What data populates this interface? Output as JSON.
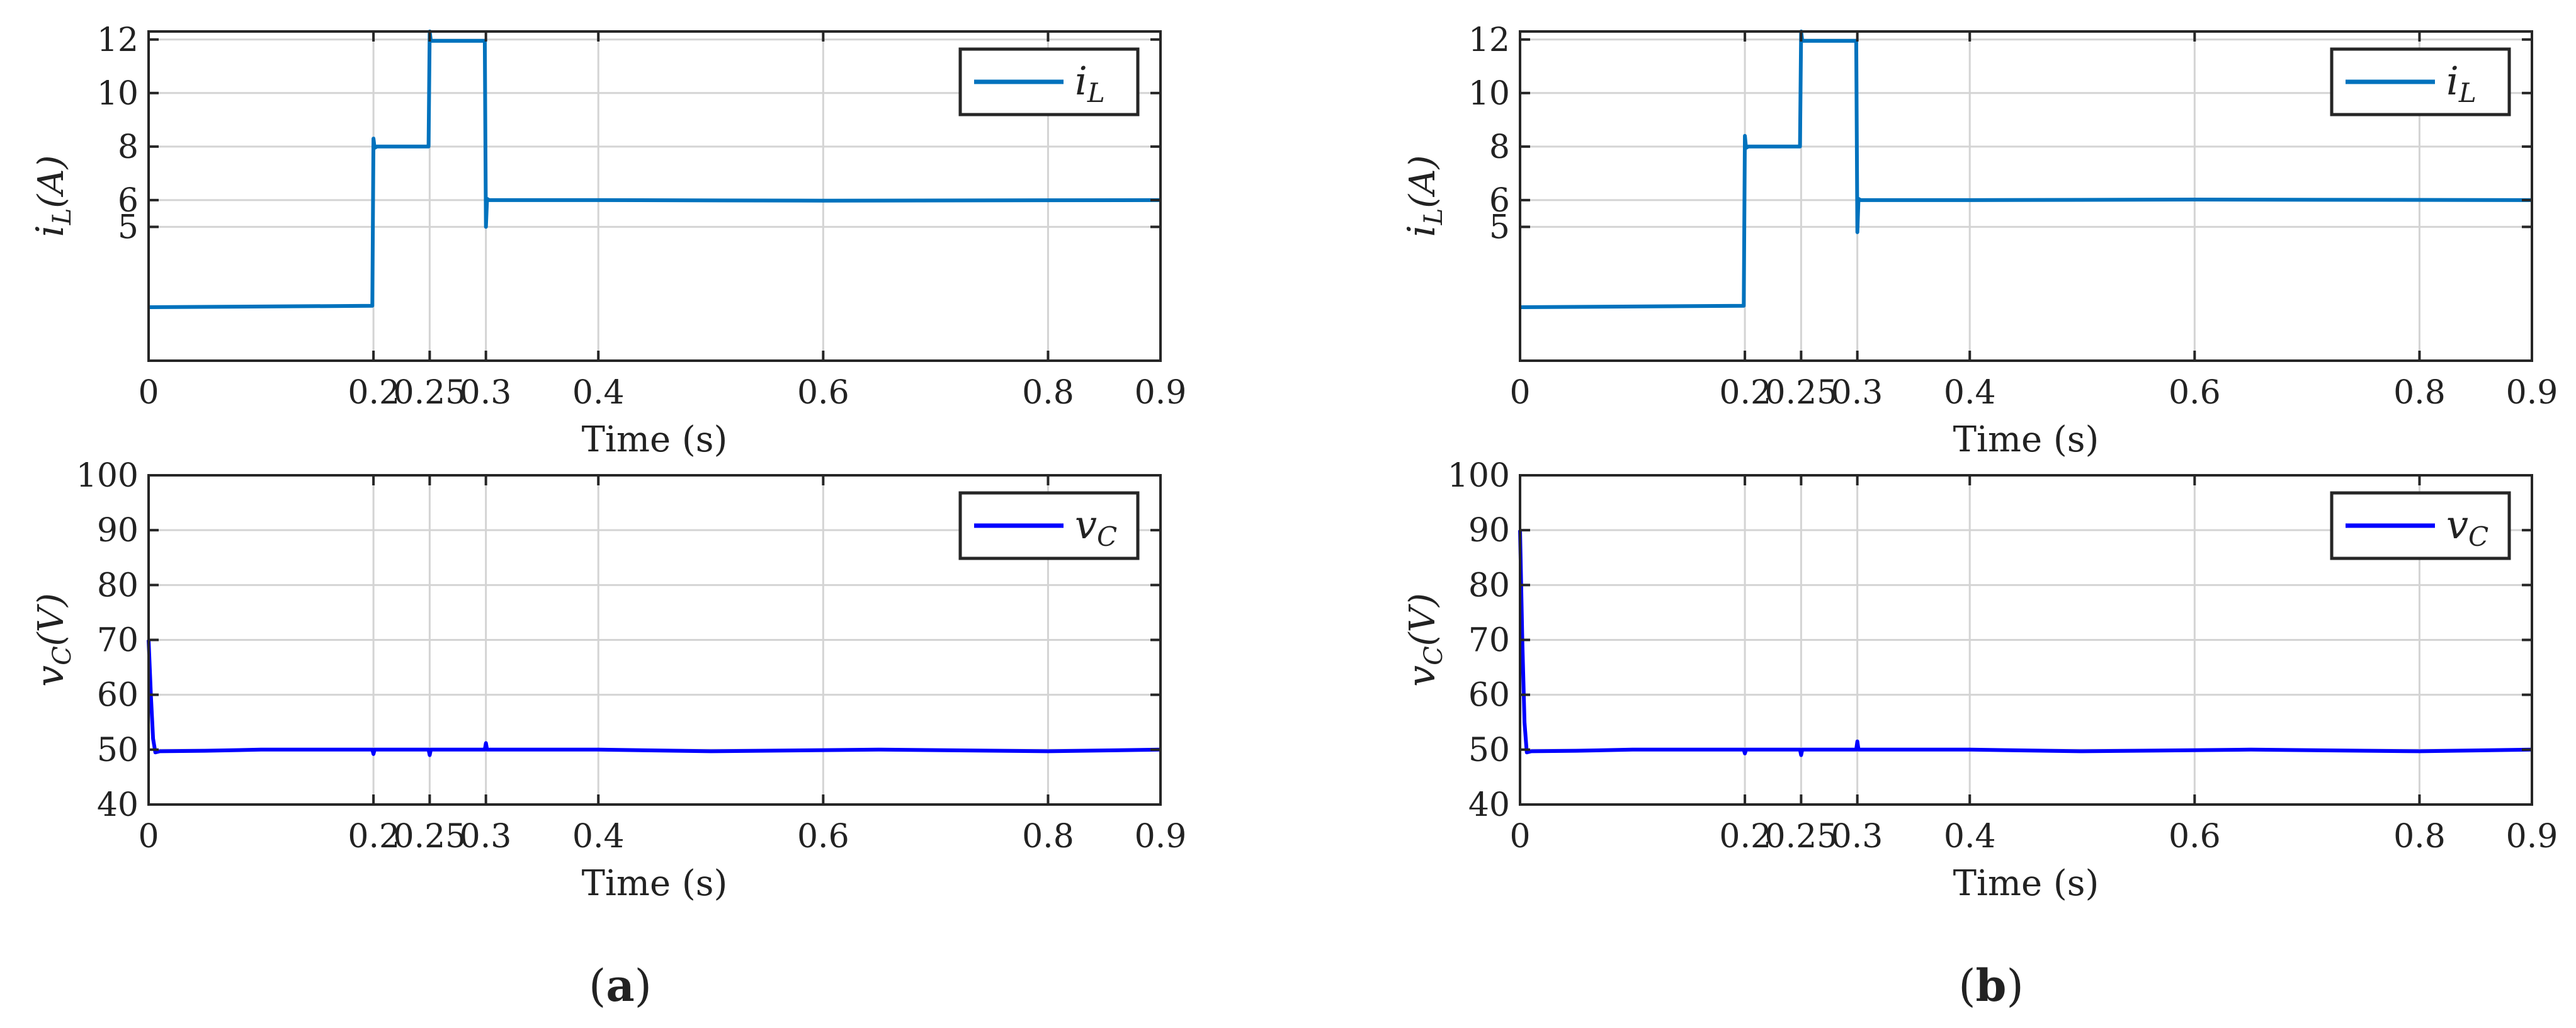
{
  "panels": [
    {
      "tag": "a",
      "charts": [
        {
          "type": "line",
          "title": "",
          "xlabel": "Time (s)",
          "ylabel_base": "i",
          "ylabel_sub": "L",
          "ylabel_unit": "(A)",
          "xlim": [
            0,
            0.9
          ],
          "ylim": [
            0,
            12.3
          ],
          "xticks": [
            0,
            0.2,
            0.25,
            0.3,
            0.4,
            0.6,
            0.8,
            0.9
          ],
          "xtick_labels": [
            "0",
            "0.2",
            "0.25",
            "0.3",
            "0.4",
            "0.6",
            "0.8",
            "0.9"
          ],
          "yticks": [
            5,
            6,
            8,
            10,
            12
          ],
          "ytick_labels": [
            "5",
            "6",
            "8",
            "10",
            "12"
          ],
          "grid": true,
          "legend_position": "top-right",
          "series": [
            {
              "name_base": "i",
              "name_sub": "L",
              "color": "#0072BD",
              "x": [
                0,
                0.199,
                0.2,
                0.201,
                0.203,
                0.249,
                0.25,
                0.251,
                0.299,
                0.3,
                0.301,
                0.303,
                0.4,
                0.6,
                0.9
              ],
              "y": [
                2.0,
                2.05,
                8.3,
                7.95,
                8.0,
                8.0,
                12.3,
                11.95,
                11.95,
                5.0,
                6.05,
                6.0,
                6.0,
                5.98,
                6.0
              ]
            }
          ]
        },
        {
          "type": "line",
          "title": "",
          "xlabel": "Time (s)",
          "ylabel_base": "v",
          "ylabel_sub": "C",
          "ylabel_unit": "(V)",
          "xlim": [
            0,
            0.9
          ],
          "ylim": [
            40,
            100
          ],
          "xticks": [
            0,
            0.2,
            0.25,
            0.3,
            0.4,
            0.6,
            0.8,
            0.9
          ],
          "xtick_labels": [
            "0",
            "0.2",
            "0.25",
            "0.3",
            "0.4",
            "0.6",
            "0.8",
            "0.9"
          ],
          "yticks": [
            40,
            50,
            60,
            70,
            80,
            90,
            100
          ],
          "ytick_labels": [
            "40",
            "50",
            "60",
            "70",
            "80",
            "90",
            "100"
          ],
          "grid": true,
          "legend_position": "top-right",
          "series": [
            {
              "name_base": "v",
              "name_sub": "C",
              "color": "#0000FF",
              "x": [
                0,
                0.002,
                0.004,
                0.006,
                0.01,
                0.05,
                0.1,
                0.199,
                0.2,
                0.201,
                0.249,
                0.25,
                0.251,
                0.299,
                0.3,
                0.301,
                0.35,
                0.4,
                0.5,
                0.65,
                0.8,
                0.9
              ],
              "y": [
                70,
                60,
                52,
                49.5,
                49.7,
                49.8,
                50,
                50,
                49.2,
                50,
                50,
                49,
                50,
                50,
                51.2,
                50,
                50,
                50,
                49.7,
                50,
                49.7,
                50
              ]
            }
          ]
        }
      ]
    },
    {
      "tag": "b",
      "charts": [
        {
          "type": "line",
          "title": "",
          "xlabel": "Time (s)",
          "ylabel_base": "i",
          "ylabel_sub": "L",
          "ylabel_unit": "(A)",
          "xlim": [
            0,
            0.9
          ],
          "ylim": [
            0,
            12.3
          ],
          "xticks": [
            0,
            0.2,
            0.25,
            0.3,
            0.4,
            0.6,
            0.8,
            0.9
          ],
          "xtick_labels": [
            "0",
            "0.2",
            "0.25",
            "0.3",
            "0.4",
            "0.6",
            "0.8",
            "0.9"
          ],
          "yticks": [
            5,
            6,
            8,
            10,
            12
          ],
          "ytick_labels": [
            "5",
            "6",
            "8",
            "10",
            "12"
          ],
          "grid": true,
          "legend_position": "top-right",
          "series": [
            {
              "name_base": "i",
              "name_sub": "L",
              "color": "#0072BD",
              "x": [
                0,
                0.199,
                0.2,
                0.201,
                0.203,
                0.249,
                0.25,
                0.251,
                0.299,
                0.3,
                0.301,
                0.303,
                0.4,
                0.6,
                0.9
              ],
              "y": [
                2.0,
                2.05,
                8.4,
                7.95,
                8.0,
                8.0,
                12.3,
                11.95,
                11.95,
                4.8,
                6.05,
                6.0,
                6.0,
                6.02,
                6.0
              ]
            }
          ]
        },
        {
          "type": "line",
          "title": "",
          "xlabel": "Time (s)",
          "ylabel_base": "v",
          "ylabel_sub": "C",
          "ylabel_unit": "(V)",
          "xlim": [
            0,
            0.9
          ],
          "ylim": [
            40,
            100
          ],
          "xticks": [
            0,
            0.2,
            0.25,
            0.3,
            0.4,
            0.6,
            0.8,
            0.9
          ],
          "xtick_labels": [
            "0",
            "0.2",
            "0.25",
            "0.3",
            "0.4",
            "0.6",
            "0.8",
            "0.9"
          ],
          "yticks": [
            40,
            50,
            60,
            70,
            80,
            90,
            100
          ],
          "ytick_labels": [
            "40",
            "50",
            "60",
            "70",
            "80",
            "90",
            "100"
          ],
          "grid": true,
          "legend_position": "top-right",
          "series": [
            {
              "name_base": "v",
              "name_sub": "C",
              "color": "#0000FF",
              "x": [
                0,
                0.002,
                0.004,
                0.006,
                0.01,
                0.05,
                0.1,
                0.199,
                0.2,
                0.201,
                0.249,
                0.25,
                0.251,
                0.299,
                0.3,
                0.301,
                0.35,
                0.4,
                0.5,
                0.65,
                0.8,
                0.9
              ],
              "y": [
                90,
                70,
                55,
                49.5,
                49.7,
                49.8,
                50,
                50,
                49.3,
                50,
                50,
                49,
                50,
                50,
                51.5,
                50,
                50,
                50,
                49.7,
                50,
                49.7,
                50
              ]
            }
          ]
        }
      ]
    }
  ]
}
